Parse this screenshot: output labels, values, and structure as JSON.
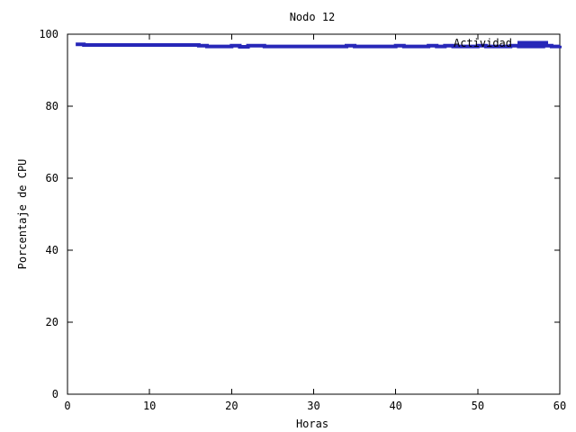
{
  "chart_data": {
    "type": "line",
    "title": "Nodo 12",
    "xlabel": "Horas",
    "ylabel": "Porcentaje de CPU",
    "xlim": [
      0,
      60
    ],
    "ylim": [
      0,
      100
    ],
    "xticks": [
      "0",
      "10",
      "20",
      "30",
      "40",
      "50",
      "60"
    ],
    "yticks": [
      "0",
      "20",
      "40",
      "60",
      "80",
      "100"
    ],
    "grid": false,
    "legend_position": "top-right",
    "series": [
      {
        "name": "Actividad",
        "color": "#2727b8",
        "x": [
          1,
          2,
          3,
          4,
          5,
          6,
          7,
          8,
          9,
          10,
          11,
          12,
          13,
          14,
          15,
          16,
          17,
          18,
          19,
          20,
          21,
          22,
          23,
          24,
          25,
          26,
          27,
          28,
          29,
          30,
          31,
          32,
          33,
          34,
          35,
          36,
          37,
          38,
          39,
          40,
          41,
          42,
          43,
          44,
          45,
          46,
          47,
          48,
          49,
          50,
          51,
          52,
          53,
          54,
          55,
          56,
          57,
          58,
          59,
          60
        ],
        "y": [
          97.2,
          97.0,
          97.0,
          97.0,
          97.0,
          97.0,
          97.0,
          97.0,
          97.0,
          97.0,
          97.0,
          97.0,
          97.0,
          97.0,
          97.0,
          96.8,
          96.6,
          96.6,
          96.6,
          96.8,
          96.5,
          96.8,
          96.8,
          96.6,
          96.6,
          96.6,
          96.6,
          96.6,
          96.6,
          96.6,
          96.6,
          96.6,
          96.6,
          96.8,
          96.6,
          96.6,
          96.6,
          96.6,
          96.6,
          96.8,
          96.6,
          96.6,
          96.6,
          96.8,
          96.6,
          96.8,
          96.6,
          96.6,
          96.6,
          96.8,
          96.6,
          96.6,
          96.6,
          96.8,
          96.6,
          96.6,
          96.6,
          96.8,
          96.6,
          96.8
        ]
      }
    ]
  }
}
